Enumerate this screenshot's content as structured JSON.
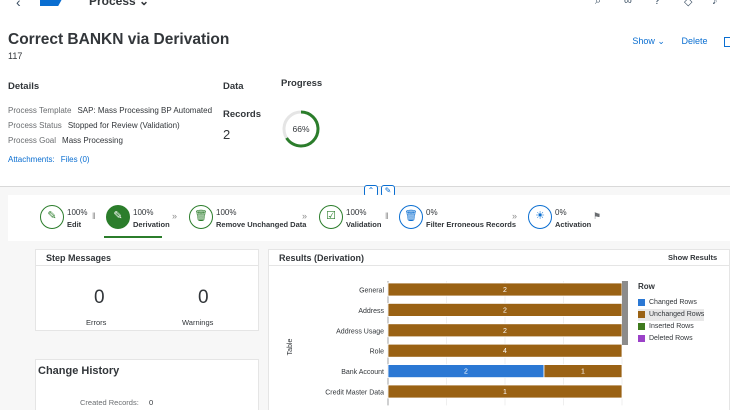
{
  "shell": {
    "app": "Process",
    "logo": "SAP"
  },
  "header": {
    "title": "Correct BANKN via Derivation",
    "subtitle": "117",
    "show_label": "Show",
    "delete_label": "Delete"
  },
  "details": {
    "heading": "Details",
    "template_key": "Process Template",
    "template_val": "SAP: Mass Processing BP Automated",
    "status_key": "Process Status",
    "status_val": "Stopped for Review (Validation)",
    "goal_key": "Process Goal",
    "goal_val": "Mass Processing",
    "attach_key": "Attachments:",
    "attach_val": "Files (0)"
  },
  "data_section": {
    "heading": "Data",
    "records_label": "Records",
    "records_value": "2"
  },
  "progress": {
    "heading": "Progress",
    "percent_label": "66%",
    "fraction": 0.66
  },
  "steps": [
    {
      "pct": "100%",
      "label": "Edit",
      "icon": "edit-icon"
    },
    {
      "pct": "100%",
      "label": "Derivation",
      "icon": "edit-icon"
    },
    {
      "pct": "100%",
      "label": "Remove Unchanged Data",
      "icon": "trash-icon"
    },
    {
      "pct": "100%",
      "label": "Validation",
      "icon": "checklist-icon"
    },
    {
      "pct": "0%",
      "label": "Filter Erroneous Records",
      "icon": "trash-icon"
    },
    {
      "pct": "0%",
      "label": "Activation",
      "icon": "lightbulb-icon"
    }
  ],
  "step_messages": {
    "title": "Step Messages",
    "errors_value": "0",
    "errors_label": "Errors",
    "warnings_value": "0",
    "warnings_label": "Warnings"
  },
  "change_history": {
    "title": "Change History",
    "created_key": "Created Records:",
    "created_val": "0"
  },
  "results": {
    "title": "Results (Derivation)",
    "show_results": "Show Results"
  },
  "chart_data": {
    "type": "bar",
    "orientation": "horizontal",
    "stacked": true,
    "ylabel": "Table",
    "categories": [
      "General",
      "Address",
      "Address Usage",
      "Role",
      "Bank Account",
      "Credit Master Data"
    ],
    "series": [
      {
        "name": "Changed Rows",
        "color": "#2b78d4",
        "values": [
          0,
          0,
          0,
          0,
          2,
          0
        ]
      },
      {
        "name": "Unchanged Rows",
        "color": "#9a6214",
        "values": [
          2,
          2,
          2,
          4,
          1,
          1
        ]
      },
      {
        "name": "Inserted Rows",
        "color": "#3f7a1e",
        "values": [
          0,
          0,
          0,
          0,
          0,
          0
        ]
      },
      {
        "name": "Deleted Rows",
        "color": "#9b41c8",
        "values": [
          0,
          0,
          0,
          0,
          0,
          0
        ]
      }
    ],
    "legend_title": "Row",
    "legend_position": "right"
  }
}
